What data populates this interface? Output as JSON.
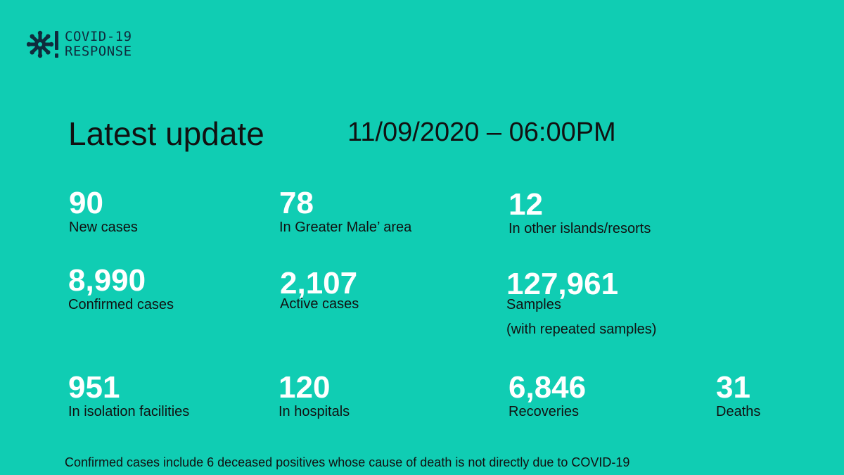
{
  "header": {
    "logo_line1": "COVID-19",
    "logo_line2": "RESPONSE",
    "logo_icon": "virus-alert-icon"
  },
  "update": {
    "title": "Latest update",
    "datetime": "11/09/2020 – 06:00PM"
  },
  "stats": {
    "new_cases": {
      "value": "90",
      "label": "New cases"
    },
    "greater_male": {
      "value": "78",
      "label": "In Greater Male’ area"
    },
    "other_islands": {
      "value": "12",
      "label": "In other islands/resorts"
    },
    "confirmed": {
      "value": "8,990",
      "label": "Confirmed cases"
    },
    "active": {
      "value": "2,107",
      "label": "Active cases"
    },
    "samples": {
      "value": "127,961",
      "label": "Samples",
      "note": "(with repeated samples)"
    },
    "isolation": {
      "value": "951",
      "label": "In isolation facilities"
    },
    "hospitals": {
      "value": "120",
      "label": "In hospitals"
    },
    "recoveries": {
      "value": "6,846",
      "label": "Recoveries"
    },
    "deaths": {
      "value": "31",
      "label": "Deaths"
    }
  },
  "footnote": "Confirmed cases include 6 deceased positives whose cause of death is not directly due to COVID-19",
  "colors": {
    "background": "#10cdb3",
    "number": "#ffffff",
    "text": "#111111",
    "logo": "#0f2b3d"
  }
}
